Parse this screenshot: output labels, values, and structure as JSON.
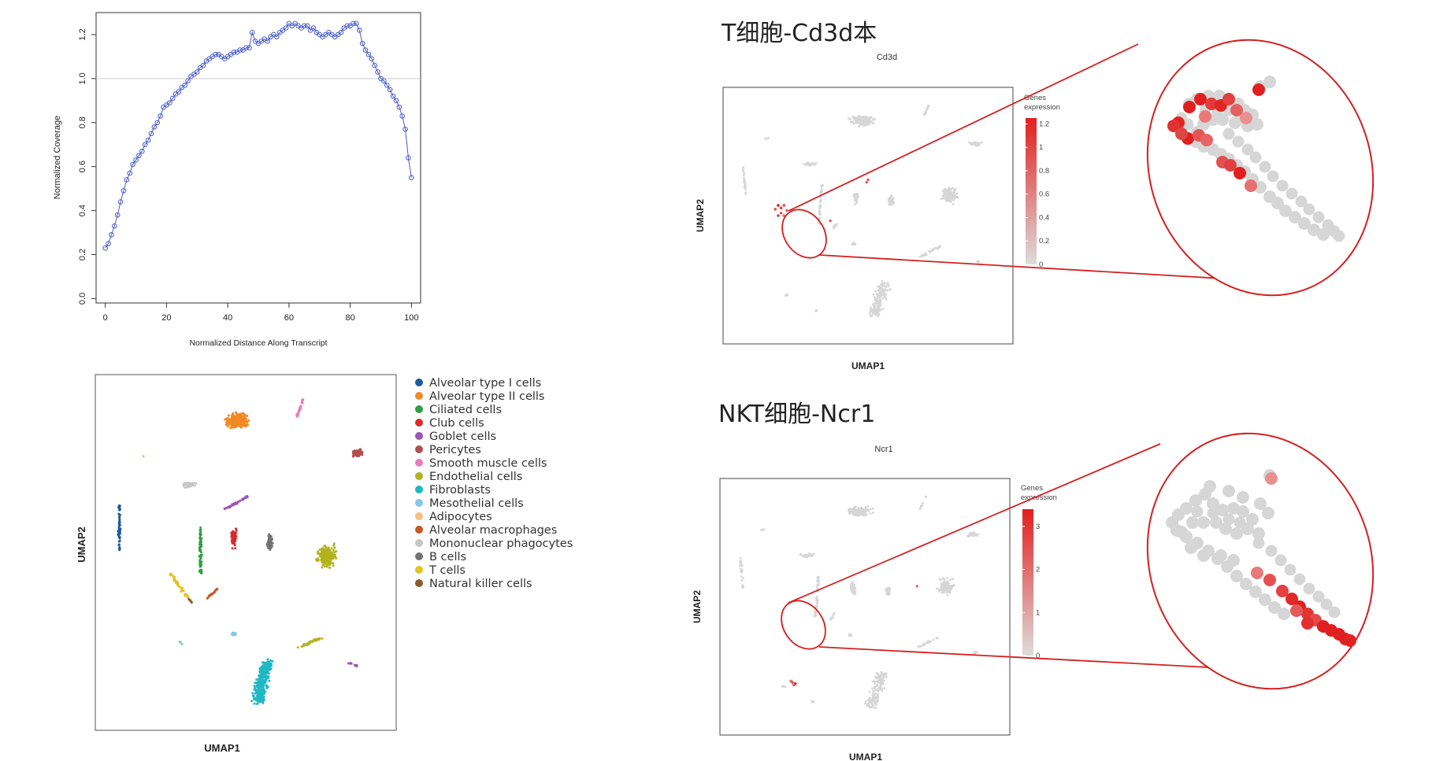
{
  "chart_data": [
    {
      "type": "line",
      "title": "",
      "xlabel": "Normalized Distance Along Transcript",
      "ylabel": "Normalized Coverage",
      "xlim": [
        -3,
        103
      ],
      "ylim": [
        -0.02,
        1.3
      ],
      "xticks": [
        "0",
        "20",
        "40",
        "60",
        "80",
        "100"
      ],
      "yticks": [
        "0.0",
        "0.2",
        "0.4",
        "0.6",
        "0.8",
        "1.0",
        "1.2"
      ],
      "reference_line": 1.0,
      "color": "#4a5cc7",
      "x": [
        0,
        1,
        2,
        3,
        4,
        5,
        6,
        7,
        8,
        9,
        10,
        11,
        12,
        13,
        14,
        15,
        16,
        17,
        18,
        19,
        20,
        21,
        22,
        23,
        24,
        25,
        26,
        27,
        28,
        29,
        30,
        31,
        32,
        33,
        34,
        35,
        36,
        37,
        38,
        39,
        40,
        41,
        42,
        43,
        44,
        45,
        46,
        47,
        48,
        49,
        50,
        51,
        52,
        53,
        54,
        55,
        56,
        57,
        58,
        59,
        60,
        61,
        62,
        63,
        64,
        65,
        66,
        67,
        68,
        69,
        70,
        71,
        72,
        73,
        74,
        75,
        76,
        77,
        78,
        79,
        80,
        81,
        82,
        83,
        84,
        85,
        86,
        87,
        88,
        89,
        90,
        91,
        92,
        93,
        94,
        95,
        96,
        97,
        98,
        99,
        100
      ],
      "y": [
        0.23,
        0.25,
        0.29,
        0.33,
        0.38,
        0.44,
        0.49,
        0.54,
        0.57,
        0.61,
        0.63,
        0.65,
        0.67,
        0.7,
        0.72,
        0.75,
        0.78,
        0.8,
        0.83,
        0.87,
        0.88,
        0.89,
        0.91,
        0.93,
        0.94,
        0.96,
        0.97,
        0.99,
        1.01,
        1.02,
        1.03,
        1.05,
        1.06,
        1.08,
        1.09,
        1.1,
        1.11,
        1.11,
        1.1,
        1.09,
        1.1,
        1.11,
        1.12,
        1.12,
        1.13,
        1.13,
        1.14,
        1.14,
        1.21,
        1.17,
        1.16,
        1.17,
        1.18,
        1.17,
        1.19,
        1.2,
        1.19,
        1.21,
        1.22,
        1.23,
        1.25,
        1.24,
        1.25,
        1.24,
        1.23,
        1.24,
        1.24,
        1.22,
        1.23,
        1.21,
        1.2,
        1.19,
        1.2,
        1.21,
        1.2,
        1.19,
        1.2,
        1.21,
        1.23,
        1.24,
        1.24,
        1.25,
        1.25,
        1.22,
        1.16,
        1.13,
        1.11,
        1.09,
        1.06,
        1.03,
        1.0,
        0.99,
        0.97,
        0.95,
        0.92,
        0.9,
        0.87,
        0.83,
        0.77,
        0.64,
        0.55
      ]
    },
    {
      "type": "scatter",
      "title": "",
      "xlabel": "UMAP1",
      "ylabel": "UMAP2",
      "legend": "right",
      "series": [
        {
          "name": "Alveolar type I cells",
          "color": "#1f5a9e"
        },
        {
          "name": "Alveolar type II cells",
          "color": "#f08a24"
        },
        {
          "name": "Ciliated cells",
          "color": "#2ea043"
        },
        {
          "name": "Club cells",
          "color": "#dc2a2a"
        },
        {
          "name": "Goblet cells",
          "color": "#9a55b5"
        },
        {
          "name": "Pericytes",
          "color": "#b04f52"
        },
        {
          "name": "Smooth muscle cells",
          "color": "#ea7cb8"
        },
        {
          "name": "Endothelial cells",
          "color": "#b2b21c"
        },
        {
          "name": "Fibroblasts",
          "color": "#1fb8c4"
        },
        {
          "name": "Mesothelial cells",
          "color": "#86c6e6"
        },
        {
          "name": "Adipocytes",
          "color": "#f6bf7d"
        },
        {
          "name": "Alveolar macrophages",
          "color": "#c85627"
        },
        {
          "name": "Mononuclear phagocytes",
          "color": "#c6c6c6"
        },
        {
          "name": "B cells",
          "color": "#737373"
        },
        {
          "name": "T cells",
          "color": "#e4c322"
        },
        {
          "name": "Natural killer cells",
          "color": "#8c5a2a"
        }
      ]
    },
    {
      "type": "scatter",
      "title": "T细胞-Cd3d本",
      "subtitle": "Cd3d",
      "xlabel": "UMAP1",
      "ylabel": "UMAP2",
      "colorbar_label": "Genes expression",
      "colorbar_ticks": [
        "1.2",
        "1",
        "0.8",
        "0.6",
        "0.4",
        "0.2",
        "0"
      ],
      "colorbar_range": [
        0,
        1.25
      ]
    },
    {
      "type": "scatter",
      "title": "NKT细胞-Ncr1",
      "subtitle": "Ncr1",
      "xlabel": "UMAP1",
      "ylabel": "UMAP2",
      "colorbar_label": "Genes expression",
      "colorbar_ticks": [
        "3",
        "2",
        "1",
        "0"
      ],
      "colorbar_range": [
        0,
        3.4
      ]
    }
  ],
  "colors": {
    "line": "#4a5cc7",
    "expression_high": "#e21f1f",
    "expression_low": "#d9d9d9",
    "callout": "#d42020"
  }
}
